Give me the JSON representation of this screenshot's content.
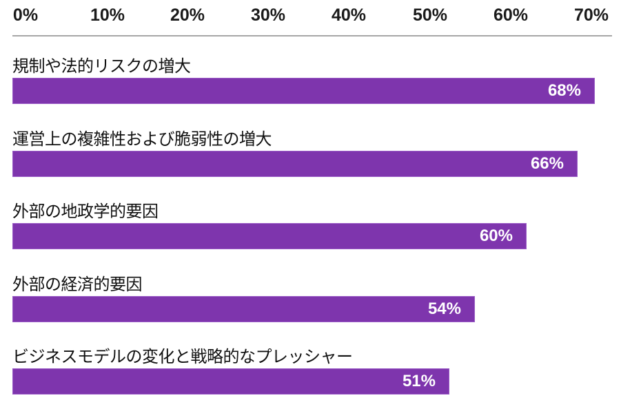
{
  "chart_data": {
    "type": "bar",
    "orientation": "horizontal",
    "title": "",
    "xlabel": "",
    "ylabel": "",
    "xlim": [
      0,
      70
    ],
    "x_ticks": [
      "0%",
      "10%",
      "20%",
      "30%",
      "40%",
      "50%",
      "60%",
      "70%"
    ],
    "x_axis_position": "top",
    "grid": false,
    "legend": null,
    "categories": [
      "規制や法的リスクの増大",
      "運営上の複雑性および脆弱性の増大",
      "外部の地政学的要因",
      "外部の経済的要因",
      "ビジネスモデルの変化と戦略的なプレッシャー"
    ],
    "values": [
      68,
      66,
      60,
      54,
      51
    ],
    "value_labels": [
      "68%",
      "66%",
      "60%",
      "54%",
      "51%"
    ],
    "bar_color": "#7e35ad"
  }
}
